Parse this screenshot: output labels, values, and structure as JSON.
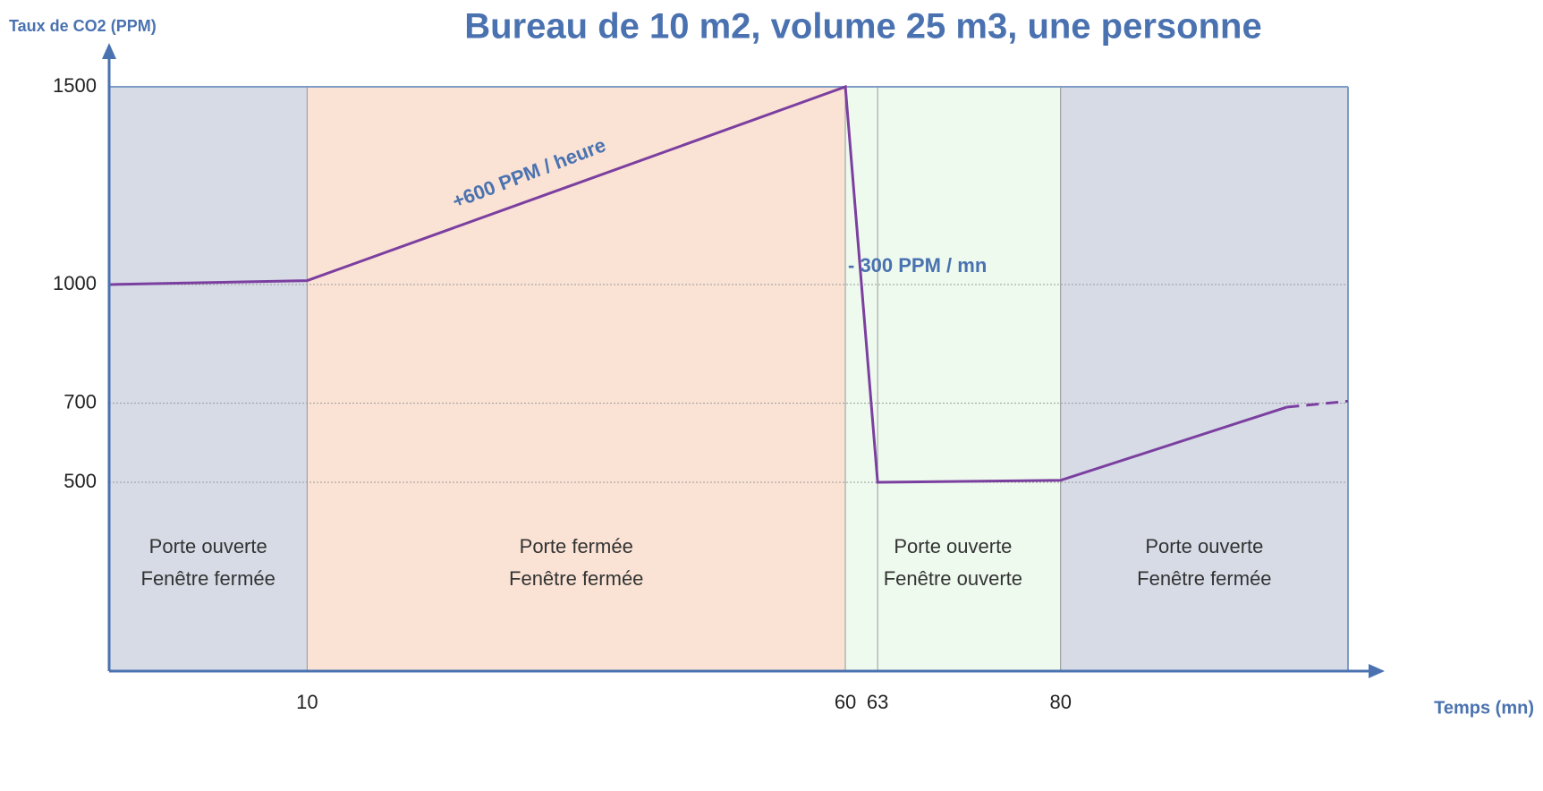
{
  "chart_data": {
    "type": "line",
    "title": "Bureau de 10 m2, volume 25 m3, une personne",
    "y_label": "Taux de CO2 (PPM)",
    "x_label": "Temps (mn)",
    "xlim": [
      -8.4,
      106.7
    ],
    "ylim": [
      0,
      1500
    ],
    "xticks": [
      10,
      60,
      63,
      80
    ],
    "yticks": [
      500,
      700,
      1000,
      1500
    ],
    "grid": true,
    "series": [
      {
        "color": "#7b3fa0",
        "x": [
          -8.4,
          10,
          60,
          63,
          80,
          101
        ],
        "values": [
          1000,
          1010,
          1500,
          500,
          505,
          690
        ]
      },
      {
        "color": "#7b3fa0",
        "dashed": true,
        "x": [
          101,
          106.7
        ],
        "values": [
          690,
          705
        ]
      }
    ],
    "regions": [
      {
        "x": [
          -8.4,
          10
        ],
        "color": "#d6dbe6",
        "label": [
          "Porte ouverte",
          "Fenêtre fermée"
        ]
      },
      {
        "x": [
          10,
          60
        ],
        "color": "#fae3d5",
        "label": [
          "Porte fermée",
          "Fenêtre fermée"
        ]
      },
      {
        "x": [
          60,
          80
        ],
        "color": "#eefaee",
        "label": [
          "Porte ouverte",
          "Fenêtre ouverte"
        ]
      },
      {
        "x": [
          80,
          106.7
        ],
        "color": "#d6dbe6",
        "label": [
          "Porte ouverte",
          "Fenêtre fermée"
        ]
      }
    ],
    "annotations": [
      "+600 PPM / heure",
      "- 300 PPM / mn"
    ]
  }
}
